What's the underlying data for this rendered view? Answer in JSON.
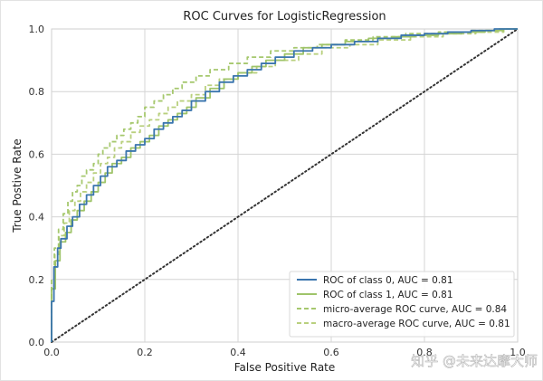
{
  "chart_data": {
    "type": "line",
    "title": "ROC Curves for LogisticRegression",
    "xlabel": "False Positive Rate",
    "ylabel": "True Postive Rate",
    "xlim": [
      0,
      1
    ],
    "ylim": [
      0,
      1
    ],
    "xticks": [
      "0.0",
      "0.2",
      "0.4",
      "0.6",
      "0.8",
      "1.0"
    ],
    "yticks": [
      "0.0",
      "0.2",
      "0.4",
      "0.6",
      "0.8",
      "1.0"
    ],
    "grid": true,
    "legend_position": "lower-right",
    "chance_line": {
      "x": [
        0,
        1
      ],
      "y": [
        0,
        1
      ],
      "style": "dotted",
      "color": "#333333"
    },
    "series": [
      {
        "name": "ROC of class 0, AUC = 0.81",
        "color": "#3a75ae",
        "style": "solid",
        "x": [
          0,
          0.0,
          0.005,
          0.005,
          0.013,
          0.013,
          0.02,
          0.02,
          0.033,
          0.033,
          0.045,
          0.045,
          0.06,
          0.06,
          0.075,
          0.075,
          0.09,
          0.09,
          0.105,
          0.105,
          0.12,
          0.12,
          0.14,
          0.14,
          0.16,
          0.16,
          0.18,
          0.18,
          0.2,
          0.2,
          0.22,
          0.22,
          0.24,
          0.24,
          0.26,
          0.26,
          0.28,
          0.28,
          0.3,
          0.3,
          0.33,
          0.33,
          0.36,
          0.36,
          0.39,
          0.39,
          0.42,
          0.42,
          0.45,
          0.45,
          0.48,
          0.48,
          0.52,
          0.52,
          0.56,
          0.56,
          0.6,
          0.6,
          0.65,
          0.65,
          0.7,
          0.7,
          0.75,
          0.75,
          0.8,
          0.8,
          0.85,
          0.85,
          0.9,
          0.9,
          0.95,
          0.95,
          1.0
        ],
        "y": [
          0,
          0.13,
          0.13,
          0.24,
          0.24,
          0.3,
          0.3,
          0.33,
          0.33,
          0.37,
          0.37,
          0.4,
          0.4,
          0.44,
          0.44,
          0.47,
          0.47,
          0.5,
          0.5,
          0.53,
          0.53,
          0.56,
          0.56,
          0.58,
          0.58,
          0.61,
          0.61,
          0.63,
          0.63,
          0.65,
          0.65,
          0.68,
          0.68,
          0.7,
          0.7,
          0.72,
          0.72,
          0.74,
          0.74,
          0.77,
          0.77,
          0.8,
          0.8,
          0.83,
          0.83,
          0.85,
          0.85,
          0.87,
          0.87,
          0.89,
          0.89,
          0.91,
          0.91,
          0.93,
          0.93,
          0.94,
          0.94,
          0.95,
          0.95,
          0.96,
          0.96,
          0.97,
          0.97,
          0.98,
          0.98,
          0.985,
          0.985,
          0.99,
          0.99,
          0.995,
          0.995,
          1.0,
          1.0
        ]
      },
      {
        "name": "ROC of class 1, AUC = 0.81",
        "color": "#9fc46a",
        "style": "solid",
        "x": [
          0,
          0.0,
          0.008,
          0.008,
          0.018,
          0.018,
          0.03,
          0.03,
          0.042,
          0.042,
          0.055,
          0.055,
          0.07,
          0.07,
          0.085,
          0.085,
          0.1,
          0.1,
          0.115,
          0.115,
          0.13,
          0.13,
          0.15,
          0.15,
          0.17,
          0.17,
          0.19,
          0.19,
          0.21,
          0.21,
          0.23,
          0.23,
          0.25,
          0.25,
          0.27,
          0.27,
          0.29,
          0.29,
          0.31,
          0.31,
          0.34,
          0.34,
          0.37,
          0.37,
          0.4,
          0.4,
          0.43,
          0.43,
          0.46,
          0.46,
          0.5,
          0.5,
          0.54,
          0.54,
          0.58,
          0.58,
          0.63,
          0.63,
          0.68,
          0.68,
          0.73,
          0.73,
          0.78,
          0.78,
          0.83,
          0.83,
          0.88,
          0.88,
          0.93,
          0.93,
          0.97,
          0.97,
          1.0
        ],
        "y": [
          0,
          0.17,
          0.17,
          0.26,
          0.26,
          0.32,
          0.32,
          0.35,
          0.35,
          0.39,
          0.39,
          0.42,
          0.42,
          0.45,
          0.45,
          0.48,
          0.48,
          0.51,
          0.51,
          0.54,
          0.54,
          0.57,
          0.57,
          0.59,
          0.59,
          0.62,
          0.62,
          0.64,
          0.64,
          0.66,
          0.66,
          0.69,
          0.69,
          0.71,
          0.71,
          0.73,
          0.73,
          0.75,
          0.75,
          0.78,
          0.78,
          0.81,
          0.81,
          0.84,
          0.84,
          0.86,
          0.86,
          0.88,
          0.88,
          0.9,
          0.9,
          0.92,
          0.92,
          0.94,
          0.94,
          0.95,
          0.95,
          0.96,
          0.96,
          0.97,
          0.97,
          0.975,
          0.975,
          0.98,
          0.98,
          0.985,
          0.985,
          0.99,
          0.99,
          0.995,
          0.995,
          1.0,
          1.0
        ]
      },
      {
        "name": "micro-average ROC curve, AUC = 0.84",
        "color": "#a6c86e",
        "style": "dashed",
        "x": [
          0,
          0.0,
          0.006,
          0.006,
          0.015,
          0.015,
          0.025,
          0.025,
          0.035,
          0.035,
          0.045,
          0.045,
          0.055,
          0.055,
          0.065,
          0.065,
          0.075,
          0.075,
          0.09,
          0.09,
          0.1,
          0.1,
          0.11,
          0.11,
          0.125,
          0.125,
          0.14,
          0.14,
          0.155,
          0.155,
          0.17,
          0.17,
          0.185,
          0.185,
          0.2,
          0.2,
          0.22,
          0.22,
          0.24,
          0.24,
          0.26,
          0.26,
          0.28,
          0.28,
          0.31,
          0.31,
          0.34,
          0.34,
          0.38,
          0.38,
          0.42,
          0.42,
          0.47,
          0.47,
          0.52,
          0.52,
          0.57,
          0.57,
          0.63,
          0.63,
          0.69,
          0.69,
          0.76,
          0.76,
          0.83,
          0.83,
          0.9,
          0.9,
          0.96,
          0.96,
          1.0
        ],
        "y": [
          0,
          0.2,
          0.2,
          0.3,
          0.3,
          0.36,
          0.36,
          0.41,
          0.41,
          0.45,
          0.45,
          0.48,
          0.48,
          0.5,
          0.5,
          0.53,
          0.53,
          0.55,
          0.55,
          0.57,
          0.57,
          0.6,
          0.6,
          0.62,
          0.62,
          0.64,
          0.64,
          0.66,
          0.66,
          0.68,
          0.68,
          0.7,
          0.7,
          0.72,
          0.72,
          0.75,
          0.75,
          0.77,
          0.77,
          0.79,
          0.79,
          0.81,
          0.81,
          0.83,
          0.83,
          0.85,
          0.85,
          0.87,
          0.87,
          0.89,
          0.89,
          0.91,
          0.91,
          0.93,
          0.93,
          0.94,
          0.94,
          0.95,
          0.95,
          0.965,
          0.965,
          0.975,
          0.975,
          0.985,
          0.985,
          0.99,
          0.99,
          0.995,
          0.995,
          1.0,
          1.0
        ]
      },
      {
        "name": "macro-average ROC curve, AUC = 0.81",
        "color": "#b9d07e",
        "style": "dashed",
        "x": [
          0,
          0.0,
          0.007,
          0.007,
          0.016,
          0.016,
          0.027,
          0.027,
          0.038,
          0.038,
          0.05,
          0.05,
          0.062,
          0.062,
          0.075,
          0.075,
          0.09,
          0.09,
          0.105,
          0.105,
          0.12,
          0.12,
          0.135,
          0.135,
          0.15,
          0.15,
          0.17,
          0.17,
          0.19,
          0.19,
          0.21,
          0.21,
          0.23,
          0.23,
          0.25,
          0.25,
          0.27,
          0.27,
          0.3,
          0.3,
          0.33,
          0.33,
          0.36,
          0.36,
          0.4,
          0.4,
          0.44,
          0.44,
          0.48,
          0.48,
          0.53,
          0.53,
          0.58,
          0.58,
          0.64,
          0.64,
          0.7,
          0.7,
          0.77,
          0.77,
          0.84,
          0.84,
          0.91,
          0.91,
          0.97,
          0.97,
          1.0
        ],
        "y": [
          0,
          0.18,
          0.18,
          0.28,
          0.28,
          0.34,
          0.34,
          0.38,
          0.38,
          0.42,
          0.42,
          0.45,
          0.45,
          0.48,
          0.48,
          0.51,
          0.51,
          0.54,
          0.54,
          0.57,
          0.57,
          0.59,
          0.59,
          0.62,
          0.62,
          0.64,
          0.64,
          0.67,
          0.67,
          0.69,
          0.69,
          0.71,
          0.71,
          0.73,
          0.73,
          0.75,
          0.75,
          0.77,
          0.77,
          0.79,
          0.79,
          0.82,
          0.82,
          0.84,
          0.84,
          0.86,
          0.86,
          0.88,
          0.88,
          0.9,
          0.9,
          0.92,
          0.92,
          0.94,
          0.94,
          0.95,
          0.95,
          0.965,
          0.965,
          0.975,
          0.975,
          0.985,
          0.985,
          0.99,
          0.99,
          1.0,
          1.0
        ]
      }
    ]
  },
  "watermark": "知乎 @未来达摩大师"
}
